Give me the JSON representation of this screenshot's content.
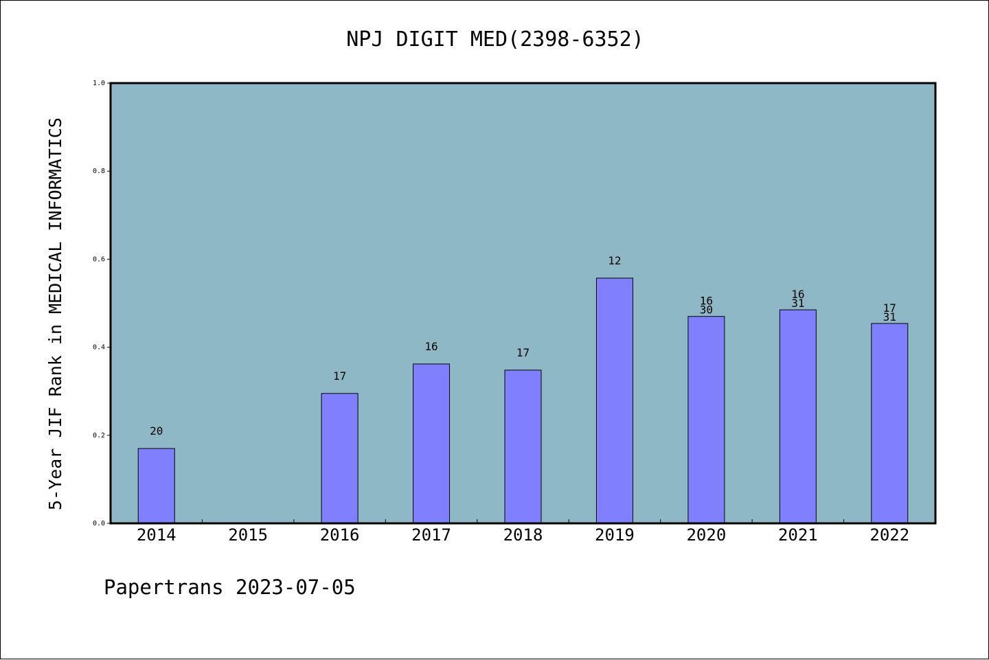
{
  "chart_data": {
    "type": "bar",
    "title": "NPJ DIGIT MED(2398-6352)",
    "xlabel": "",
    "ylabel": "5-Year JIF Rank in MEDICAL INFORMATICS",
    "ylim": [
      0,
      1.0
    ],
    "yticks": [
      "0.0",
      "0.2",
      "0.4",
      "0.6",
      "0.8",
      "1.0"
    ],
    "categories": [
      "2014",
      "2015",
      "2016",
      "2017",
      "2018",
      "2019",
      "2020",
      "2021",
      "2022"
    ],
    "values": [
      0.17,
      null,
      0.295,
      0.362,
      0.348,
      0.557,
      0.47,
      0.485,
      0.454
    ],
    "bar_labels": [
      [
        "20"
      ],
      [],
      [
        "17"
      ],
      [
        "16"
      ],
      [
        "17"
      ],
      [
        "12"
      ],
      [
        "16",
        "30"
      ],
      [
        "16",
        "31"
      ],
      [
        "17",
        "31"
      ]
    ],
    "grid": false,
    "colors": {
      "plot_background": "#8fb8c6",
      "bar_fill": "#8080ff",
      "bar_stroke": "#000000",
      "axis": "#000000"
    }
  },
  "footer": {
    "note": "Papertrans 2023-07-05"
  }
}
